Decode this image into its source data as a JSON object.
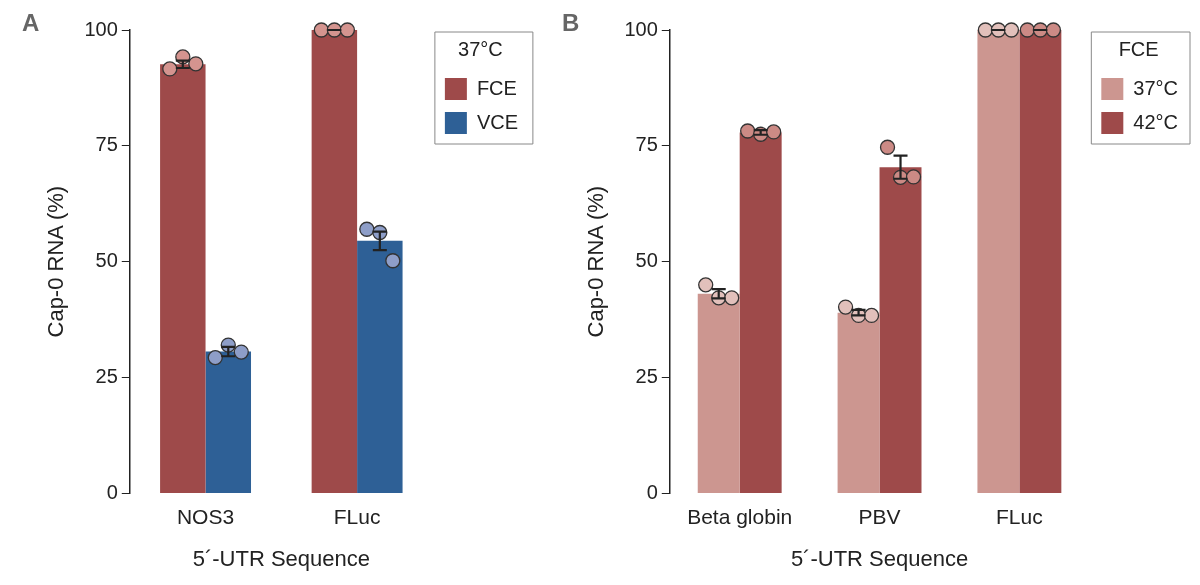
{
  "chart_data": [
    {
      "type": "bar",
      "xlabel": "5´-UTR Sequence",
      "ylabel": "Cap-0 RNA (%)",
      "legend_title": "37°C",
      "annotations": [
        "A"
      ],
      "categories": [
        "NOS3",
        "FLuc"
      ],
      "series": [
        {
          "name": "FCE",
          "color": "#9e4a4a",
          "values": [
            92.6,
            100
          ],
          "errors": [
            0.8,
            0
          ]
        },
        {
          "name": "VCE",
          "color": "#2e6096",
          "values": [
            30.6,
            54.5
          ],
          "errors": [
            1,
            2
          ]
        },
        {
          "type": "scatter",
          "color": "#d4948f",
          "x": [
            "NOS3",
            "NOS3",
            "NOS3",
            "FLuc",
            "FLuc",
            "FLuc"
          ],
          "values": [
            91.6,
            94.2,
            92.7,
            100,
            100,
            100
          ]
        },
        {
          "type": "scatter",
          "color": "#8e9ec8",
          "x": [
            "NOS3",
            "NOS3",
            "NOS3",
            "FLuc",
            "FLuc",
            "FLuc"
          ],
          "values": [
            29.3,
            32,
            30.5,
            57,
            56.3,
            50.2
          ]
        }
      ],
      "ylim": [
        0,
        100
      ],
      "yticks": [
        0,
        25,
        50,
        75,
        100
      ],
      "grid": false,
      "legend": "top right"
    },
    {
      "type": "bar",
      "xlabel": "5´-UTR Sequence",
      "ylabel": "Cap-0 RNA (%)",
      "legend_title": "FCE",
      "annotations": [
        "B"
      ],
      "categories": [
        "Beta globin",
        "PBV",
        "FLuc"
      ],
      "series": [
        {
          "name": "37°C",
          "color": "#cc9690",
          "values": [
            43.1,
            39,
            100
          ],
          "errors": [
            1,
            0.6,
            0
          ]
        },
        {
          "name": "42°C",
          "color": "#9e4a4a",
          "values": [
            77.9,
            70.4,
            100
          ],
          "errors": [
            0.5,
            2.5,
            0
          ]
        },
        {
          "type": "scatter",
          "color": "#e2c0bb",
          "x": [
            "Beta globin",
            "Beta globin",
            "Beta globin",
            "PBV",
            "PBV",
            "PBV",
            "FLuc",
            "FLuc",
            "FLuc"
          ],
          "values": [
            45,
            42.2,
            42.2,
            40.2,
            38.4,
            38.4,
            100,
            100,
            100
          ]
        },
        {
          "type": "scatter",
          "color": "#cc8a85",
          "x": [
            "Beta globin",
            "Beta globin",
            "Beta globin",
            "PBV",
            "PBV",
            "PBV",
            "FLuc",
            "FLuc",
            "FLuc"
          ],
          "values": [
            78.2,
            77.5,
            78,
            74.7,
            68.2,
            68.3,
            100,
            100,
            100
          ]
        }
      ],
      "ylim": [
        0,
        100
      ],
      "yticks": [
        0,
        25,
        50,
        75,
        100
      ],
      "grid": false,
      "legend": "top right"
    }
  ]
}
